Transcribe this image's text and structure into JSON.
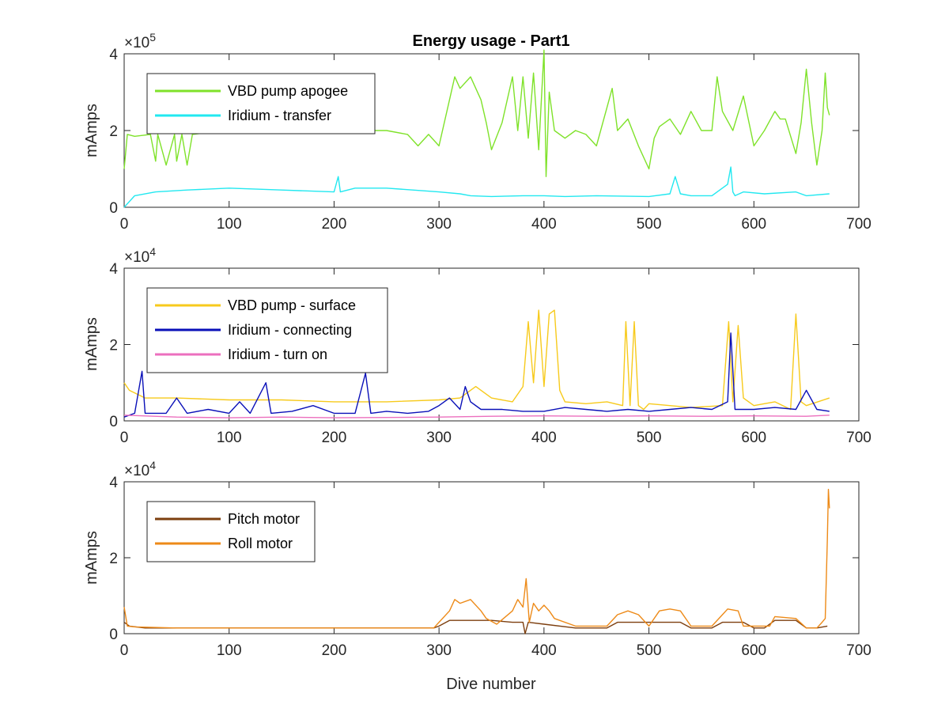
{
  "chart_data": [
    {
      "type": "line",
      "title": "Energy usage - Part1",
      "ylabel": "mAmps",
      "xlabel": "",
      "xlim": [
        0,
        700
      ],
      "ylim": [
        0,
        400000
      ],
      "x_ticks": [
        "0",
        "100",
        "200",
        "300",
        "400",
        "500",
        "600",
        "700"
      ],
      "y_ticks": [
        "0",
        "2",
        "4"
      ],
      "exponent": "×10",
      "exponent_power": "5",
      "legend_position": "top-left",
      "series": [
        {
          "name": "VBD pump apogee",
          "color": "#7fe22a",
          "x": [
            0,
            3,
            10,
            25,
            30,
            32,
            40,
            48,
            50,
            55,
            60,
            65,
            80,
            100,
            150,
            180,
            200,
            250,
            270,
            280,
            290,
            300,
            310,
            315,
            320,
            330,
            340,
            345,
            350,
            360,
            370,
            375,
            380,
            385,
            390,
            395,
            400,
            402,
            405,
            410,
            420,
            430,
            440,
            450,
            460,
            465,
            470,
            480,
            490,
            500,
            505,
            510,
            520,
            530,
            540,
            550,
            560,
            565,
            570,
            580,
            590,
            600,
            610,
            620,
            625,
            630,
            640,
            645,
            650,
            655,
            660,
            665,
            668,
            670,
            672
          ],
          "y": [
            100000,
            190000,
            185000,
            190000,
            120000,
            190000,
            110000,
            190000,
            120000,
            190000,
            110000,
            190000,
            195000,
            195000,
            195000,
            200000,
            200000,
            200000,
            190000,
            160000,
            190000,
            160000,
            280000,
            340000,
            310000,
            340000,
            280000,
            220000,
            150000,
            220000,
            340000,
            200000,
            340000,
            180000,
            350000,
            150000,
            410000,
            80000,
            300000,
            200000,
            180000,
            200000,
            190000,
            160000,
            260000,
            310000,
            200000,
            230000,
            160000,
            100000,
            180000,
            210000,
            230000,
            190000,
            250000,
            200000,
            200000,
            340000,
            250000,
            200000,
            290000,
            160000,
            200000,
            250000,
            230000,
            230000,
            140000,
            220000,
            360000,
            220000,
            110000,
            200000,
            350000,
            260000,
            240000
          ]
        },
        {
          "name": "Iridium - transfer",
          "color": "#22e8f0",
          "x": [
            0,
            10,
            30,
            60,
            100,
            150,
            200,
            204,
            206,
            220,
            250,
            300,
            320,
            330,
            350,
            380,
            400,
            420,
            450,
            500,
            520,
            525,
            530,
            540,
            560,
            575,
            578,
            580,
            582,
            590,
            610,
            640,
            650,
            672
          ],
          "y": [
            0,
            30000,
            40000,
            45000,
            50000,
            45000,
            40000,
            80000,
            40000,
            50000,
            50000,
            40000,
            35000,
            30000,
            28000,
            30000,
            30000,
            28000,
            30000,
            28000,
            35000,
            80000,
            35000,
            30000,
            30000,
            60000,
            105000,
            40000,
            30000,
            40000,
            35000,
            40000,
            30000,
            35000
          ]
        }
      ]
    },
    {
      "type": "line",
      "title": "",
      "ylabel": "mAmps",
      "xlabel": "",
      "xlim": [
        0,
        700
      ],
      "ylim": [
        0,
        40000
      ],
      "x_ticks": [
        "0",
        "100",
        "200",
        "300",
        "400",
        "500",
        "600",
        "700"
      ],
      "y_ticks": [
        "0",
        "2",
        "4"
      ],
      "exponent": "×10",
      "exponent_power": "4",
      "legend_position": "top-left",
      "series": [
        {
          "name": "VBD pump - surface",
          "color": "#f7ca1c",
          "x": [
            0,
            5,
            20,
            50,
            100,
            150,
            200,
            250,
            300,
            320,
            335,
            350,
            370,
            380,
            385,
            390,
            395,
            400,
            405,
            410,
            415,
            420,
            440,
            460,
            475,
            478,
            482,
            486,
            490,
            495,
            500,
            540,
            570,
            576,
            580,
            585,
            590,
            600,
            620,
            635,
            640,
            645,
            650,
            672
          ],
          "y": [
            10000,
            8000,
            6000,
            6000,
            5500,
            5500,
            5000,
            5000,
            5500,
            6000,
            9000,
            6000,
            5000,
            9000,
            26000,
            10000,
            29000,
            9000,
            28000,
            29000,
            8000,
            5000,
            4500,
            5000,
            4000,
            26000,
            4000,
            26000,
            4000,
            3000,
            4500,
            3500,
            4000,
            26000,
            5000,
            25000,
            6000,
            4000,
            5000,
            3000,
            28000,
            5000,
            4000,
            6000
          ]
        },
        {
          "name": "Iridium - connecting",
          "color": "#0a10b8",
          "x": [
            0,
            10,
            17,
            20,
            40,
            50,
            60,
            80,
            100,
            110,
            120,
            135,
            140,
            160,
            180,
            200,
            220,
            230,
            235,
            250,
            270,
            290,
            300,
            310,
            320,
            325,
            330,
            340,
            360,
            380,
            400,
            420,
            440,
            460,
            480,
            500,
            520,
            540,
            560,
            575,
            578,
            582,
            600,
            620,
            640,
            650,
            660,
            672
          ],
          "y": [
            1000,
            2000,
            13000,
            2000,
            2000,
            6000,
            2000,
            3000,
            2000,
            5000,
            2000,
            10000,
            2000,
            2500,
            4000,
            2000,
            2000,
            12500,
            2000,
            2500,
            2000,
            2500,
            4000,
            6000,
            3000,
            9000,
            5000,
            3000,
            3000,
            2500,
            2500,
            3500,
            3000,
            2500,
            3000,
            2500,
            3000,
            3500,
            3000,
            5000,
            23000,
            3000,
            3000,
            3500,
            3000,
            8000,
            3000,
            2500
          ]
        },
        {
          "name": "Iridium - turn on",
          "color": "#ec6fbe",
          "x": [
            0,
            50,
            100,
            150,
            200,
            250,
            300,
            350,
            400,
            450,
            500,
            550,
            600,
            650,
            672
          ],
          "y": [
            1500,
            1000,
            800,
            1000,
            800,
            900,
            1000,
            1200,
            1300,
            1200,
            1300,
            1200,
            1300,
            1200,
            1500
          ]
        }
      ]
    },
    {
      "type": "line",
      "title": "",
      "ylabel": "mAmps",
      "xlabel": "Dive number",
      "xlim": [
        0,
        700
      ],
      "ylim": [
        0,
        40000
      ],
      "x_ticks": [
        "0",
        "100",
        "200",
        "300",
        "400",
        "500",
        "600",
        "700"
      ],
      "y_ticks": [
        "0",
        "2",
        "4"
      ],
      "exponent": "×10",
      "exponent_power": "4",
      "legend_position": "top-left",
      "series": [
        {
          "name": "Pitch motor",
          "color": "#7d3f0f",
          "x": [
            0,
            5,
            20,
            100,
            200,
            295,
            300,
            310,
            320,
            350,
            370,
            380,
            382,
            385,
            400,
            430,
            460,
            470,
            500,
            520,
            530,
            540,
            560,
            570,
            590,
            600,
            610,
            620,
            640,
            650,
            660,
            670
          ],
          "y": [
            3000,
            2000,
            1500,
            1500,
            1500,
            1500,
            2000,
            3500,
            3500,
            3500,
            3000,
            3000,
            0,
            3000,
            2500,
            1500,
            1500,
            3000,
            3000,
            3000,
            3000,
            1500,
            1500,
            3000,
            3000,
            1500,
            1500,
            3500,
            3500,
            1500,
            1500,
            2000
          ]
        },
        {
          "name": "Roll motor",
          "color": "#ed8a18",
          "x": [
            0,
            3,
            10,
            50,
            100,
            200,
            295,
            300,
            310,
            315,
            320,
            330,
            340,
            345,
            355,
            370,
            375,
            380,
            383,
            386,
            390,
            395,
            400,
            405,
            410,
            430,
            460,
            470,
            480,
            490,
            500,
            510,
            520,
            530,
            540,
            560,
            570,
            575,
            585,
            590,
            600,
            615,
            620,
            640,
            650,
            660,
            665,
            668,
            670,
            671,
            672
          ],
          "y": [
            7000,
            2000,
            1800,
            1500,
            1500,
            1500,
            1500,
            3000,
            6000,
            9000,
            8000,
            9000,
            6000,
            4000,
            2500,
            6000,
            9000,
            7000,
            14500,
            3000,
            8000,
            6000,
            7500,
            6000,
            4000,
            2000,
            2000,
            5000,
            6000,
            5000,
            2000,
            6000,
            6500,
            6000,
            2000,
            2000,
            5000,
            6500,
            6000,
            2000,
            2000,
            2000,
            4500,
            4000,
            1500,
            1500,
            3000,
            4000,
            25000,
            38000,
            33000
          ]
        }
      ]
    }
  ]
}
